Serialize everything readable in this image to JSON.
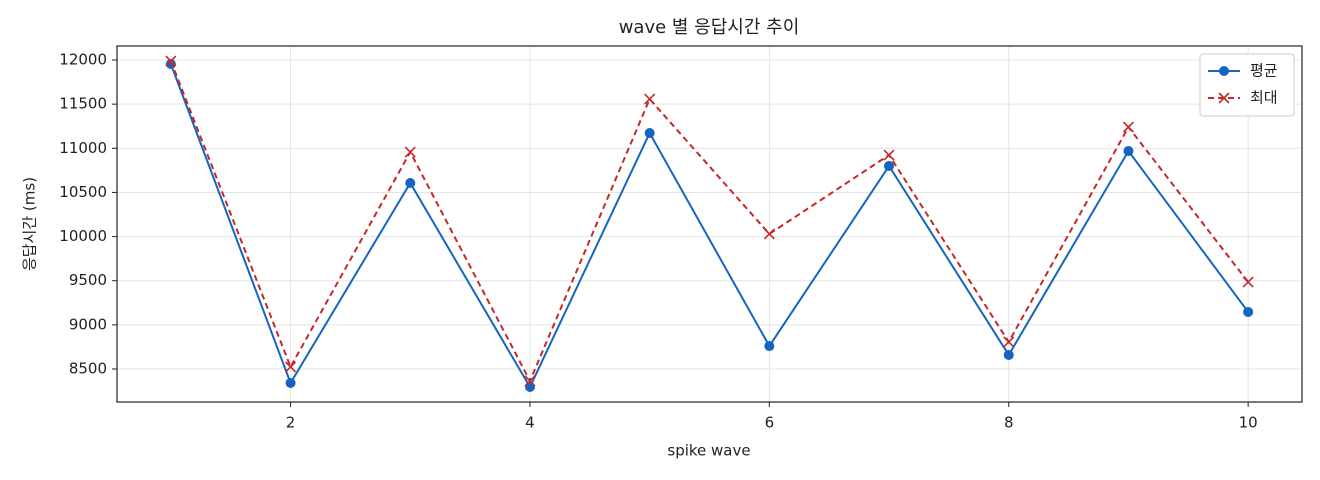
{
  "chart_data": {
    "type": "line",
    "title": "wave 별 응답시간 추이",
    "x_label": "spike wave",
    "y_label": "응답시간 (ms)",
    "x": [
      1,
      2,
      3,
      4,
      5,
      6,
      7,
      8,
      9,
      10
    ],
    "series": [
      {
        "name": "평균",
        "color": "#1565c0",
        "marker": "o",
        "dash": false,
        "values": [
          11955,
          8341,
          10607,
          8296,
          11173,
          8760,
          10800,
          8659,
          10969,
          9146
        ]
      },
      {
        "name": "최대",
        "color": "#c62828",
        "marker": "x",
        "dash": true,
        "values": [
          11989,
          8523,
          10958,
          8364,
          11558,
          10030,
          10924,
          8806,
          11241,
          9485
        ]
      }
    ],
    "xlim": [
      0.55,
      10.45
    ],
    "ylim": [
      8126,
      12159
    ],
    "xticks": [
      2,
      4,
      6,
      8,
      10
    ],
    "yticks": [
      8500,
      9000,
      9500,
      10000,
      10500,
      11000,
      11500,
      12000
    ],
    "grid": true,
    "legend": "upper right"
  }
}
